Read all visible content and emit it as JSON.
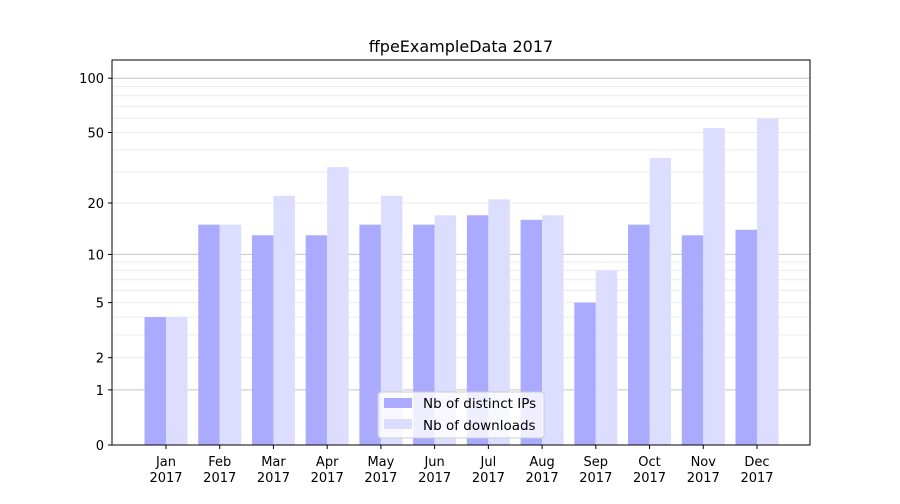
{
  "chart_data": {
    "type": "bar",
    "title": "ffpeExampleData 2017",
    "xlabel": "",
    "ylabel": "",
    "yscale": "log10(1+y)",
    "ylim": [
      0,
      126
    ],
    "yticks": [
      0,
      1,
      2,
      5,
      10,
      20,
      50,
      100
    ],
    "grid": true,
    "legend_position": "bottom-center",
    "categories": [
      "Jan\n2017",
      "Feb\n2017",
      "Mar\n2017",
      "Apr\n2017",
      "May\n2017",
      "Jun\n2017",
      "Jul\n2017",
      "Aug\n2017",
      "Sep\n2017",
      "Oct\n2017",
      "Nov\n2017",
      "Dec\n2017"
    ],
    "series": [
      {
        "name": "Nb of distinct IPs",
        "color": "#aaaaff",
        "values": [
          4,
          15,
          13,
          13,
          15,
          15,
          17,
          16,
          5,
          15,
          13,
          14
        ]
      },
      {
        "name": "Nb of downloads",
        "color": "#ddddff",
        "values": [
          4,
          15,
          22,
          32,
          22,
          17,
          21,
          17,
          8,
          36,
          53,
          60
        ]
      }
    ]
  }
}
